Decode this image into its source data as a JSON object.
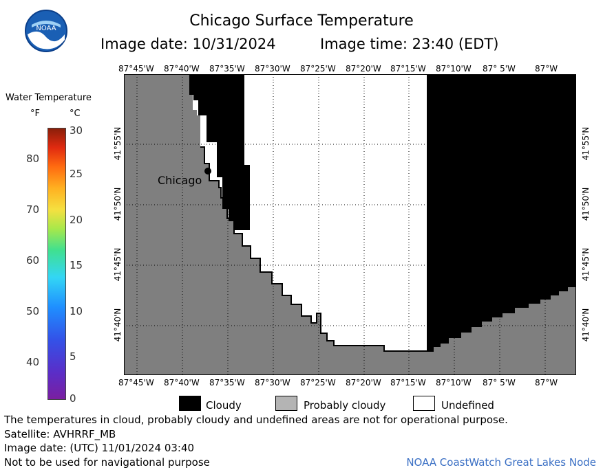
{
  "header": {
    "title": "Chicago Surface Temperature",
    "image_date": "Image date: 10/31/2024",
    "image_time": "Image time: 23:40 (EDT)",
    "logo_text": "NOAA"
  },
  "map": {
    "lon_labels": [
      "87°45'W",
      "87°40'W",
      "87°35'W",
      "87°30'W",
      "87°25'W",
      "87°20'W",
      "87°15'W",
      "87°10'W",
      "87° 5'W",
      "87°W"
    ],
    "lat_labels": [
      "41°55'N",
      "41°50'N",
      "41°45'N",
      "41°40'N"
    ],
    "city_label": "Chicago",
    "colors": {
      "land": "#7f7f7f",
      "cloudy": "#000000",
      "undefined": "#ffffff",
      "probably_cloudy": "#b4b4b4"
    }
  },
  "colorbar": {
    "title": "Water Temperature",
    "unit_f": "°F",
    "unit_c": "°C",
    "f_ticks": [
      "80",
      "70",
      "60",
      "50",
      "40"
    ],
    "c_ticks": [
      "30",
      "25",
      "20",
      "15",
      "10",
      "5",
      "0"
    ]
  },
  "legend": {
    "cloudy": "Cloudy",
    "probably_cloudy": "Probably cloudy",
    "undefined": "Undefined"
  },
  "footer": {
    "disclaimer": "The temperatures in cloud, probably cloudy and undefined areas are not for operational purpose.",
    "satellite": "Satellite: AVHRRF_MB",
    "utc_date": "Image date: (UTC) 11/01/2024  03:40",
    "nav_warning": "Not to be used for navigational purpose",
    "credit": "NOAA CoastWatch Great Lakes Node"
  }
}
